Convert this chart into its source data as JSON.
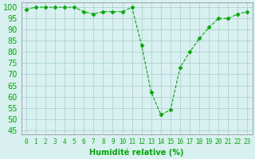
{
  "x": [
    0,
    1,
    2,
    3,
    4,
    5,
    6,
    7,
    8,
    9,
    10,
    11,
    12,
    13,
    14,
    15,
    16,
    17,
    18,
    19,
    20,
    21,
    22,
    23
  ],
  "y": [
    99,
    100,
    100,
    100,
    100,
    100,
    98,
    97,
    98,
    98,
    98,
    100,
    83,
    62,
    52,
    54,
    73,
    80,
    86,
    91,
    95,
    95,
    97,
    98
  ],
  "line_color": "#00aa00",
  "marker": "D",
  "marker_size": 2.5,
  "bg_color": "#d8f0f0",
  "grid_color": "#aacccc",
  "xlabel": "Humidité relative (%)",
  "xlabel_color": "#00aa00",
  "xlabel_fontsize": 7,
  "ylabel_ticks": [
    45,
    50,
    55,
    60,
    65,
    70,
    75,
    80,
    85,
    90,
    95,
    100
  ],
  "ylim": [
    43,
    102
  ],
  "xlim": [
    -0.5,
    23.5
  ],
  "ytick_fontsize": 7,
  "xtick_fontsize": 5.5
}
